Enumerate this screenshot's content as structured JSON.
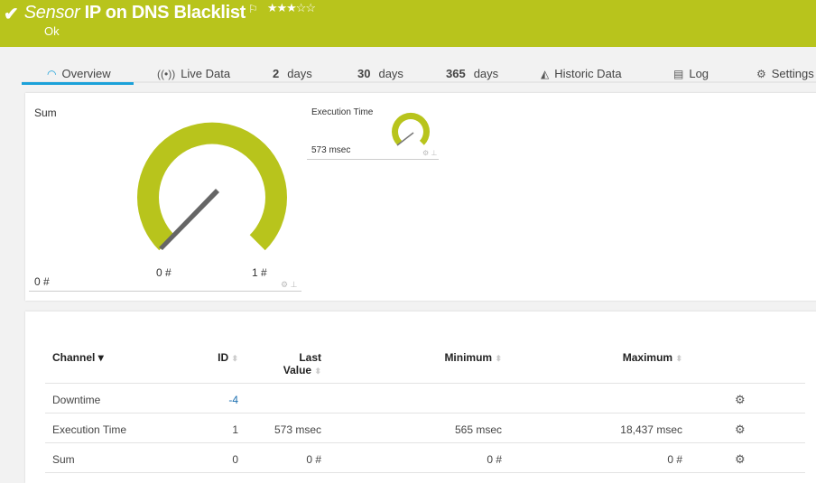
{
  "header": {
    "title_prefix": "Sensor",
    "title": "IP on DNS Blacklist",
    "status": "Ok",
    "priority_stars": 3,
    "priority_max": 5,
    "stars_text": "★★★☆☆",
    "color": "#b8c41c"
  },
  "tabs": [
    {
      "label": "Overview",
      "icon": "gauge-icon",
      "active": true
    },
    {
      "label": "Live Data",
      "icon": "broadcast-icon"
    },
    {
      "num": "2",
      "label": "days"
    },
    {
      "num": "30",
      "label": "days"
    },
    {
      "num": "365",
      "label": "days"
    },
    {
      "label": "Historic Data",
      "icon": "area-chart-icon"
    },
    {
      "label": "Log",
      "icon": "list-icon"
    },
    {
      "label": "Settings",
      "icon": "gear-icon"
    }
  ],
  "gauges": {
    "sum": {
      "title": "Sum",
      "value": "0 #",
      "min_label": "0 #",
      "max_label": "1 #"
    },
    "exec": {
      "title": "Execution Time",
      "value": "573 msec"
    }
  },
  "table": {
    "headers": {
      "channel": "Channel",
      "id": "ID",
      "last": "Last",
      "last2": "Value",
      "min": "Minimum",
      "max": "Maximum"
    },
    "rows": [
      {
        "channel": "Downtime",
        "id": "-4",
        "last": "",
        "min": "",
        "max": ""
      },
      {
        "channel": "Execution Time",
        "id": "1",
        "last": "573 msec",
        "min": "565 msec",
        "max": "18,437 msec"
      },
      {
        "channel": "Sum",
        "id": "0",
        "last": "0 #",
        "min": "0 #",
        "max": "0 #"
      }
    ]
  }
}
